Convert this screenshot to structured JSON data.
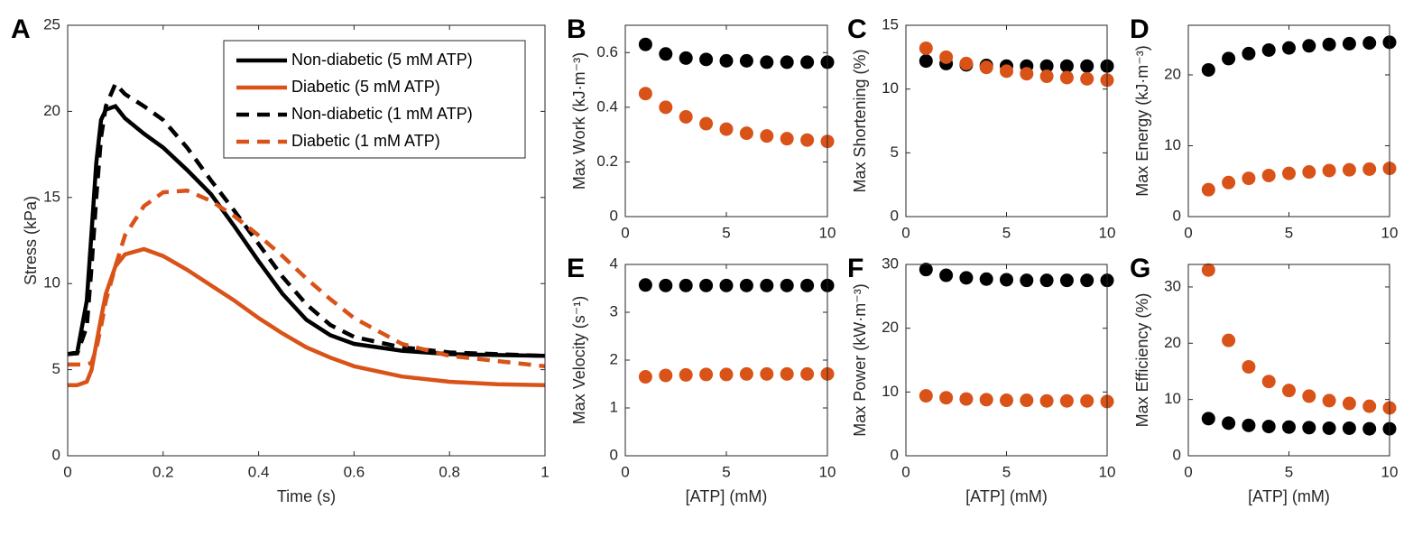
{
  "chart_data": [
    {
      "type": "line",
      "panel": "A",
      "xlabel": "Time (s)",
      "ylabel": "Stress (kPa)",
      "xlim": [
        0,
        1
      ],
      "ylim": [
        0,
        25
      ],
      "xticks": [
        0,
        0.2,
        0.4,
        0.6,
        0.8,
        1
      ],
      "yticks": [
        0,
        5,
        10,
        15,
        20,
        25
      ],
      "x": [
        0,
        0.02,
        0.04,
        0.05,
        0.06,
        0.07,
        0.08,
        0.1,
        0.12,
        0.16,
        0.2,
        0.25,
        0.3,
        0.35,
        0.4,
        0.45,
        0.5,
        0.55,
        0.6,
        0.7,
        0.8,
        0.9,
        1
      ],
      "legend": "upper right",
      "series": [
        {
          "name": "Non-diabetic (5 mM ATP)",
          "color": "#000000",
          "dash": false,
          "values": [
            5.9,
            6.0,
            9,
            13,
            17,
            19.5,
            20.1,
            20.3,
            19.6,
            18.7,
            17.9,
            16.6,
            15.2,
            13.3,
            11.3,
            9.4,
            7.9,
            7.0,
            6.5,
            6.1,
            5.9,
            5.85,
            5.8
          ]
        },
        {
          "name": "Diabetic (5 mM ATP)",
          "color": "#d95319",
          "dash": false,
          "values": [
            4.1,
            4.1,
            4.3,
            5,
            6.5,
            8,
            9.4,
            11,
            11.7,
            12.0,
            11.6,
            10.8,
            9.9,
            9.0,
            8.0,
            7.1,
            6.3,
            5.7,
            5.2,
            4.6,
            4.3,
            4.15,
            4.1
          ]
        },
        {
          "name": "Non-diabetic (1 mM ATP)",
          "color": "#000000",
          "dash": true,
          "values": [
            5.9,
            5.95,
            7.5,
            11,
            15,
            18.5,
            20.3,
            21.6,
            21.0,
            20.3,
            19.5,
            17.9,
            16.0,
            14.2,
            12.3,
            10.4,
            8.8,
            7.6,
            6.9,
            6.3,
            6.0,
            5.9,
            5.8
          ]
        },
        {
          "name": "Diabetic (1 mM ATP)",
          "color": "#d95319",
          "dash": true,
          "values": [
            5.3,
            5.3,
            5.3,
            5.4,
            6.2,
            7.5,
            9,
            11,
            12.8,
            14.5,
            15.3,
            15.4,
            14.8,
            13.9,
            12.8,
            11.6,
            10.3,
            9.1,
            8.0,
            6.5,
            5.8,
            5.5,
            5.2
          ]
        }
      ]
    },
    {
      "type": "scatter",
      "panel": "B",
      "ylabel": "Max Work (kJ·m⁻³)",
      "xlim": [
        0,
        10
      ],
      "ylim": [
        0,
        0.7
      ],
      "xticks": [
        0,
        5,
        10
      ],
      "yticks": [
        0,
        0.2,
        0.4,
        0.6
      ],
      "x": [
        1,
        2,
        3,
        4,
        5,
        6,
        7,
        8,
        9,
        10
      ],
      "series": [
        {
          "color": "#000000",
          "values": [
            0.63,
            0.595,
            0.58,
            0.575,
            0.57,
            0.57,
            0.565,
            0.565,
            0.565,
            0.565
          ]
        },
        {
          "color": "#d95319",
          "values": [
            0.45,
            0.4,
            0.365,
            0.34,
            0.32,
            0.305,
            0.295,
            0.285,
            0.28,
            0.275
          ]
        }
      ]
    },
    {
      "type": "scatter",
      "panel": "C",
      "ylabel": "Max Shortening (%)",
      "xlim": [
        0,
        10
      ],
      "ylim": [
        0,
        15
      ],
      "xticks": [
        0,
        5,
        10
      ],
      "yticks": [
        0,
        5,
        10,
        15
      ],
      "x": [
        1,
        2,
        3,
        4,
        5,
        6,
        7,
        8,
        9,
        10
      ],
      "series": [
        {
          "color": "#000000",
          "values": [
            12.2,
            12.0,
            11.9,
            11.85,
            11.8,
            11.8,
            11.8,
            11.8,
            11.8,
            11.8
          ]
        },
        {
          "color": "#d95319",
          "values": [
            13.2,
            12.5,
            12.0,
            11.7,
            11.4,
            11.2,
            11.0,
            10.9,
            10.8,
            10.7
          ]
        }
      ]
    },
    {
      "type": "scatter",
      "panel": "D",
      "ylabel": "Max Energy (kJ·m⁻³)",
      "xlim": [
        0,
        10
      ],
      "ylim": [
        0,
        27
      ],
      "xticks": [
        0,
        5,
        10
      ],
      "yticks": [
        0,
        10,
        20
      ],
      "x": [
        1,
        2,
        3,
        4,
        5,
        6,
        7,
        8,
        9,
        10
      ],
      "series": [
        {
          "color": "#000000",
          "values": [
            20.7,
            22.3,
            23.0,
            23.5,
            23.8,
            24.1,
            24.3,
            24.4,
            24.5,
            24.6
          ]
        },
        {
          "color": "#d95319",
          "values": [
            3.8,
            4.8,
            5.4,
            5.8,
            6.1,
            6.3,
            6.5,
            6.6,
            6.7,
            6.8
          ]
        }
      ]
    },
    {
      "type": "scatter",
      "panel": "E",
      "xlabel": "[ATP] (mM)",
      "ylabel": "Max Velocity (s⁻¹)",
      "xlim": [
        0,
        10
      ],
      "ylim": [
        0,
        4
      ],
      "xticks": [
        0,
        5,
        10
      ],
      "yticks": [
        0,
        1,
        2,
        3,
        4
      ],
      "x": [
        1,
        2,
        3,
        4,
        5,
        6,
        7,
        8,
        9,
        10
      ],
      "series": [
        {
          "color": "#000000",
          "values": [
            3.57,
            3.56,
            3.56,
            3.56,
            3.56,
            3.56,
            3.56,
            3.56,
            3.56,
            3.56
          ]
        },
        {
          "color": "#d95319",
          "values": [
            1.65,
            1.68,
            1.69,
            1.7,
            1.7,
            1.71,
            1.71,
            1.71,
            1.71,
            1.71
          ]
        }
      ]
    },
    {
      "type": "scatter",
      "panel": "F",
      "xlabel": "[ATP] (mM)",
      "ylabel": "Max Power (kW·m⁻³)",
      "xlim": [
        0,
        10
      ],
      "ylim": [
        0,
        30
      ],
      "xticks": [
        0,
        5,
        10
      ],
      "yticks": [
        0,
        10,
        20,
        30
      ],
      "x": [
        1,
        2,
        3,
        4,
        5,
        6,
        7,
        8,
        9,
        10
      ],
      "series": [
        {
          "color": "#000000",
          "values": [
            29.2,
            28.3,
            27.9,
            27.7,
            27.6,
            27.5,
            27.5,
            27.5,
            27.5,
            27.5
          ]
        },
        {
          "color": "#d95319",
          "values": [
            9.4,
            9.1,
            8.9,
            8.8,
            8.7,
            8.7,
            8.6,
            8.6,
            8.6,
            8.5
          ]
        }
      ]
    },
    {
      "type": "scatter",
      "panel": "G",
      "xlabel": "[ATP] (mM)",
      "ylabel": "Max Efficiency (%)",
      "xlim": [
        0,
        10
      ],
      "ylim": [
        0,
        34
      ],
      "xticks": [
        0,
        5,
        10
      ],
      "yticks": [
        0,
        10,
        20,
        30
      ],
      "x": [
        1,
        2,
        3,
        4,
        5,
        6,
        7,
        8,
        9,
        10
      ],
      "series": [
        {
          "color": "#000000",
          "values": [
            6.6,
            5.8,
            5.4,
            5.2,
            5.1,
            5.0,
            4.9,
            4.9,
            4.8,
            4.8
          ]
        },
        {
          "color": "#d95319",
          "values": [
            33,
            20.5,
            15.8,
            13.2,
            11.6,
            10.6,
            9.8,
            9.3,
            8.8,
            8.5
          ]
        }
      ]
    }
  ]
}
